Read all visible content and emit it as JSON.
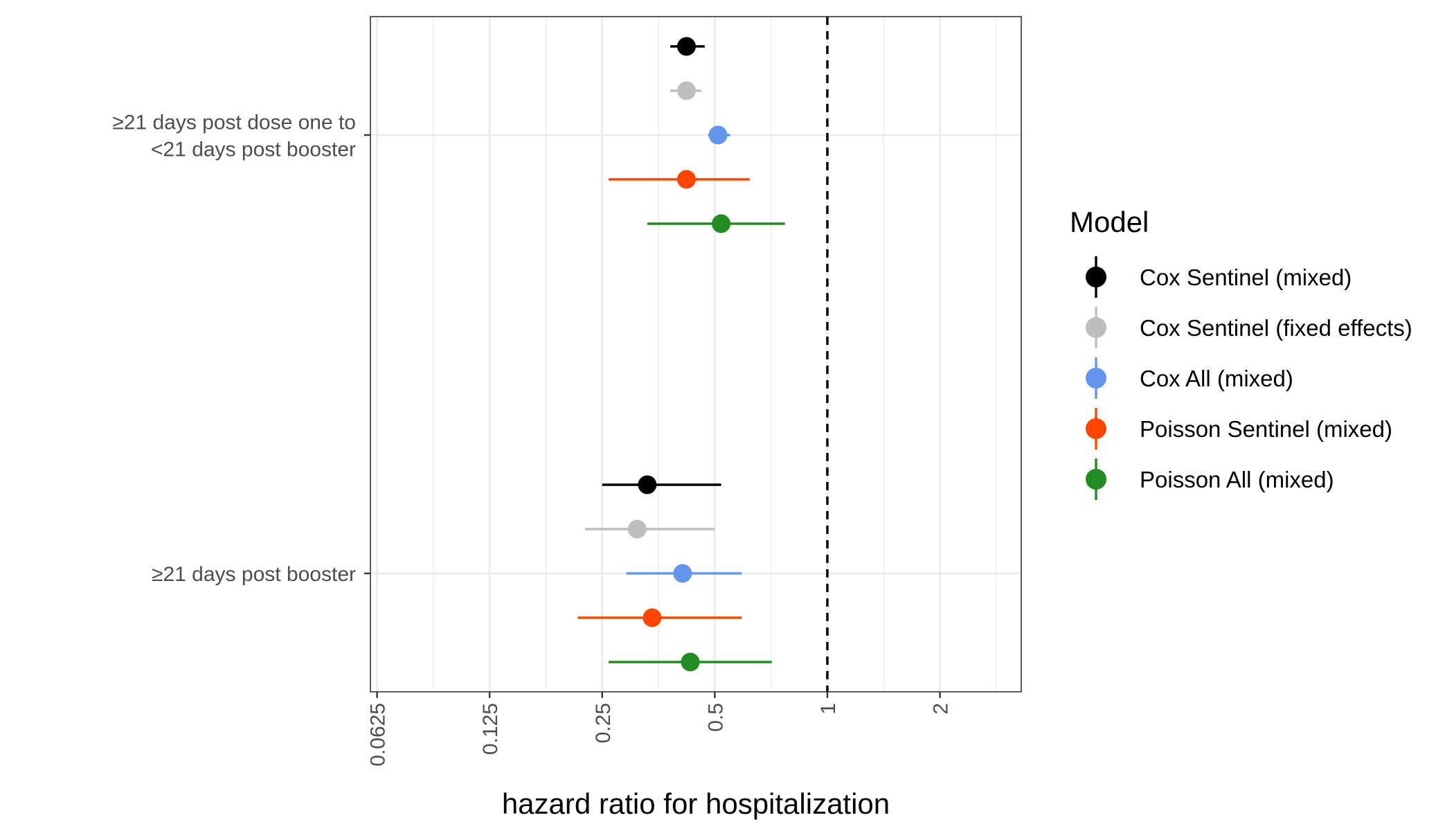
{
  "chart_data": {
    "type": "forest",
    "xlabel": "hazard ratio for hospitalization",
    "x_scale": "log2",
    "xlim": [
      0.06,
      3.3
    ],
    "x_ticks": [
      0.0625,
      0.125,
      0.25,
      0.5,
      1,
      2
    ],
    "x_tick_labels": [
      "0.0625",
      "0.125",
      "0.25",
      "0.5",
      "1",
      "2"
    ],
    "reference_line": 1,
    "grid": true,
    "legend_title": "Model",
    "legend_position": "right",
    "categories": [
      "≥21 days post dose one to\n<21 days post booster",
      "≥21 days post booster"
    ],
    "series": [
      {
        "name": "Cox Sentinel (mixed)",
        "color": "#000000",
        "estimates": [
          {
            "hr": 0.42,
            "lower": 0.38,
            "upper": 0.47
          },
          {
            "hr": 0.33,
            "lower": 0.25,
            "upper": 0.52
          }
        ]
      },
      {
        "name": "Cox Sentinel (fixed effects)",
        "color": "#bebebe",
        "estimates": [
          {
            "hr": 0.42,
            "lower": 0.38,
            "upper": 0.46
          },
          {
            "hr": 0.31,
            "lower": 0.225,
            "upper": 0.5
          }
        ]
      },
      {
        "name": "Cox All (mixed)",
        "color": "#6495ed",
        "estimates": [
          {
            "hr": 0.51,
            "lower": 0.48,
            "upper": 0.55
          },
          {
            "hr": 0.41,
            "lower": 0.29,
            "upper": 0.59
          }
        ]
      },
      {
        "name": "Poisson Sentinel (mixed)",
        "color": "#ff4500",
        "estimates": [
          {
            "hr": 0.42,
            "lower": 0.26,
            "upper": 0.62
          },
          {
            "hr": 0.34,
            "lower": 0.215,
            "upper": 0.59
          }
        ]
      },
      {
        "name": "Poisson All (mixed)",
        "color": "#228b22",
        "estimates": [
          {
            "hr": 0.52,
            "lower": 0.33,
            "upper": 0.77
          },
          {
            "hr": 0.43,
            "lower": 0.26,
            "upper": 0.71
          }
        ]
      }
    ]
  }
}
